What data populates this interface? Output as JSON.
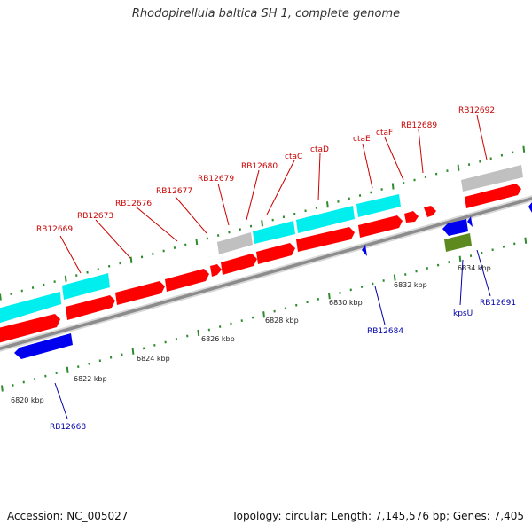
{
  "title": "Rhodopirellula baltica SH 1, complete genome",
  "footer": {
    "accession": "Accession: NC_005027",
    "summary": "Topology: circular; Length: 7,145,576 bp; Genes: 7,405"
  },
  "colors": {
    "forward_cds": "#ff0000",
    "reverse_cds": "#0000ee",
    "rna": "#00eeee",
    "other": "#c0c0c0",
    "reverse_other": "#5c8a1e",
    "tick": "#2e8b2e",
    "backbone": "#8c8c8c",
    "label_forward": "#cc0000",
    "label_reverse": "#0000aa"
  },
  "scale_ticks": [
    {
      "kbp": 6820,
      "label": "6820 kbp"
    },
    {
      "kbp": 6822,
      "label": "6822 kbp"
    },
    {
      "kbp": 6824,
      "label": "6824 kbp"
    },
    {
      "kbp": 6826,
      "label": "6826 kbp"
    },
    {
      "kbp": 6828,
      "label": "6828 kbp"
    },
    {
      "kbp": 6830,
      "label": "6830 kbp"
    },
    {
      "kbp": 6832,
      "label": "6832 kbp"
    },
    {
      "kbp": 6834,
      "label": "6834 kbp"
    }
  ],
  "forward_gene_labels": [
    "RB12669",
    "RB12673",
    "RB12676",
    "RB12677",
    "RB12679",
    "RB12680",
    "ctaC",
    "ctaD",
    "ctaE",
    "ctaF",
    "RB12689",
    "RB12692"
  ],
  "reverse_gene_labels": [
    "RB12668",
    "RB12684",
    "kpsU",
    "RB12691"
  ]
}
